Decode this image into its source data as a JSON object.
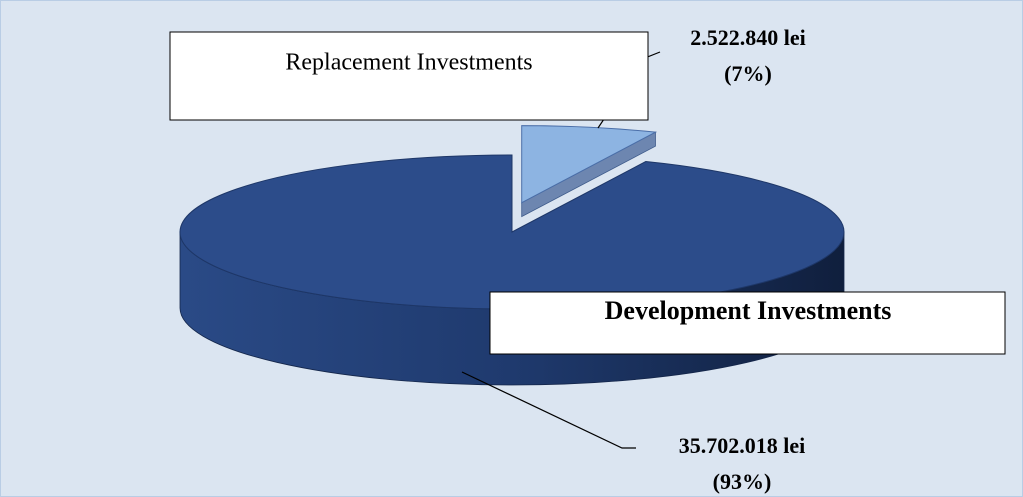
{
  "chart_data": {
    "type": "pie",
    "categories": [
      "Replacement Investments",
      "Development Investments"
    ],
    "values": [
      2522840,
      35702018
    ],
    "value_labels": [
      "2.522.840 lei",
      "35.702.018 lei"
    ],
    "percent_labels": [
      "(7%)",
      "(93%)"
    ],
    "colors": [
      "#8db4e2",
      "#2c4c8a"
    ]
  }
}
